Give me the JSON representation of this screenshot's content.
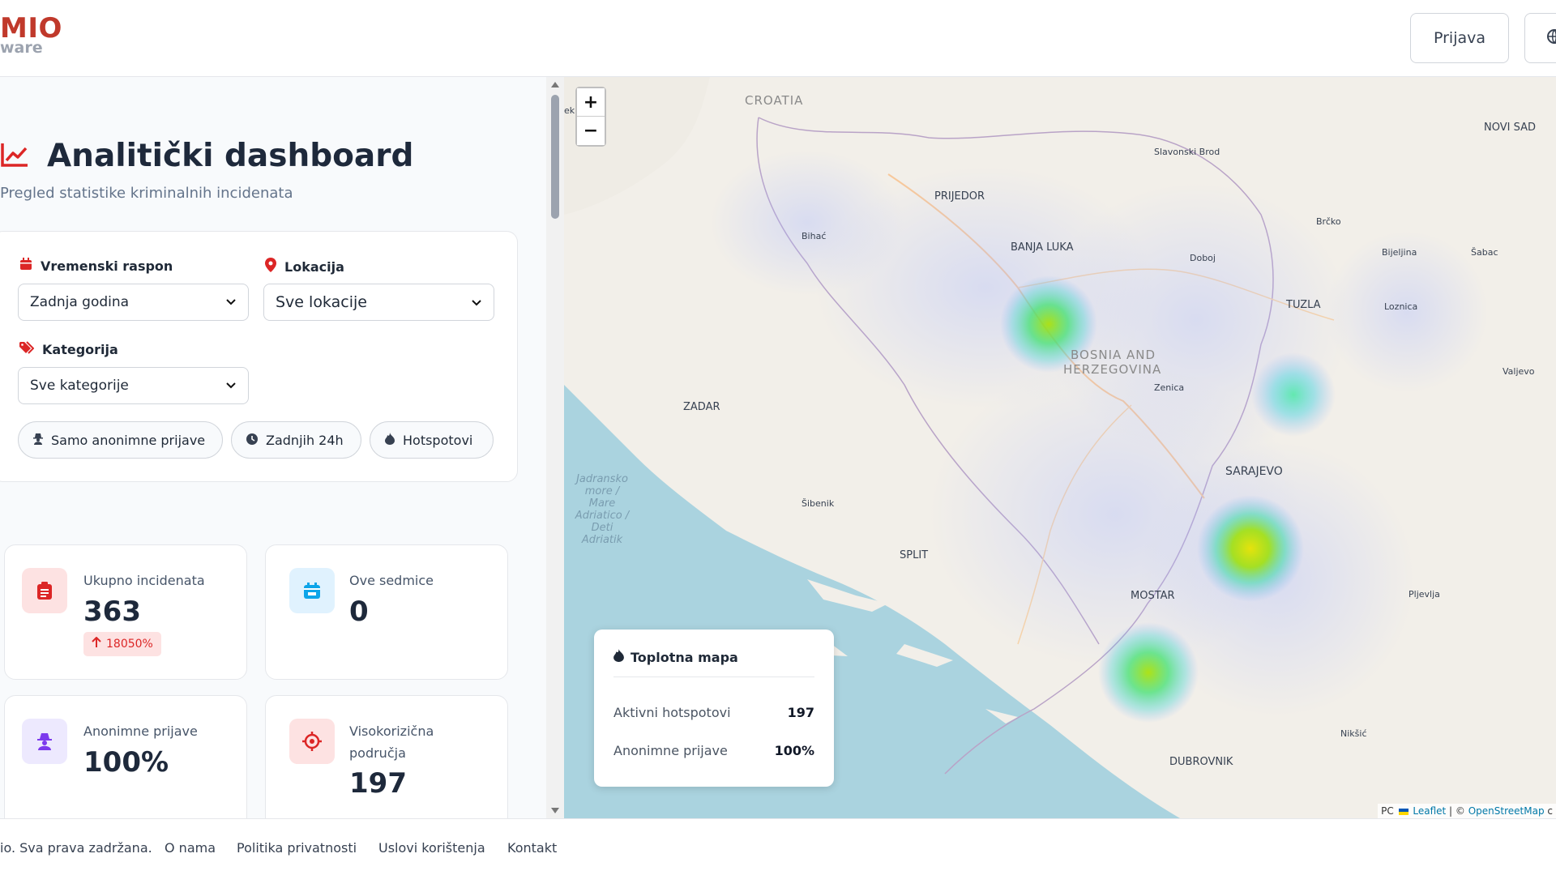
{
  "header": {
    "logo_line1": "MIO",
    "logo_line2": "ware",
    "login_label": "Prijava",
    "lang_icon": "globe-icon"
  },
  "page": {
    "title": "Analitički dashboard",
    "subtitle": "Pregled statistike kriminalnih incidenata",
    "title_icon": "chart-line-icon"
  },
  "filters": {
    "time_label": "Vremenski raspon",
    "time_value": "Zadnja godina",
    "location_label": "Lokacija",
    "location_value": "Sve lokacije",
    "category_label": "Kategorija",
    "category_value": "Sve kategorije",
    "chips": [
      "Samo anonimne prijave",
      "Zadnjih 24h",
      "Hotspotovi"
    ]
  },
  "stats": [
    {
      "label": "Ukupno incidenata",
      "value": "363",
      "badge": "18050%"
    },
    {
      "label": "Ove sedmice",
      "value": "0"
    },
    {
      "label": "Anonimne prijave",
      "value": "100%"
    },
    {
      "label": "Visokorizična područja",
      "value": "197"
    }
  ],
  "map": {
    "zoom_in": "+",
    "zoom_out": "−",
    "labels": {
      "croatia": "CROATIA",
      "bih_1": "BOSNIA AND",
      "bih_2": "HERZEGOVINA",
      "novi_sad": "NOVI SAD",
      "slavonski_brod": "Slavonski Brod",
      "prijedor": "PRIJEDOR",
      "bihac": "Bihać",
      "banja_luka": "BANJA LUKA",
      "brcko": "Brčko",
      "doboj": "Doboj",
      "bijeljina": "Bijeljina",
      "sabac": "Šabac",
      "tuzla": "TUZLA",
      "loznica": "Loznica",
      "valjevo": "Valjevo",
      "zenica": "Zenica",
      "zadar": "ZADAR",
      "sarajevo": "SARAJEVO",
      "sibenik": "Šibenik",
      "split": "SPLIT",
      "mostar": "MOSTAR",
      "pljevlja": "Pljevlja",
      "niksic": "Nikšić",
      "dubrovnik": "DUBROVNIK",
      "sea_1": "Jadransko",
      "sea_2": "more /",
      "sea_3": "Mare",
      "sea_4": "Adriatico /",
      "sea_5": "Deti",
      "sea_6": "Adriatik",
      "edge": "ek"
    },
    "legend": {
      "title": "Toplotna mapa",
      "rows": [
        {
          "label": "Aktivni hotspotovi",
          "value": "197"
        },
        {
          "label": "Anonimne prijave",
          "value": "100%"
        }
      ]
    },
    "attribution": {
      "prefix": "PC",
      "leaflet": "Leaflet",
      "sep": " | © ",
      "osm": "OpenStreetMap",
      "suffix": " c"
    }
  },
  "footer": {
    "copyright": "io. Sva prava zadržana.",
    "links": [
      "O nama",
      "Politika privatnosti",
      "Uslovi korištenja",
      "Kontakt"
    ]
  }
}
